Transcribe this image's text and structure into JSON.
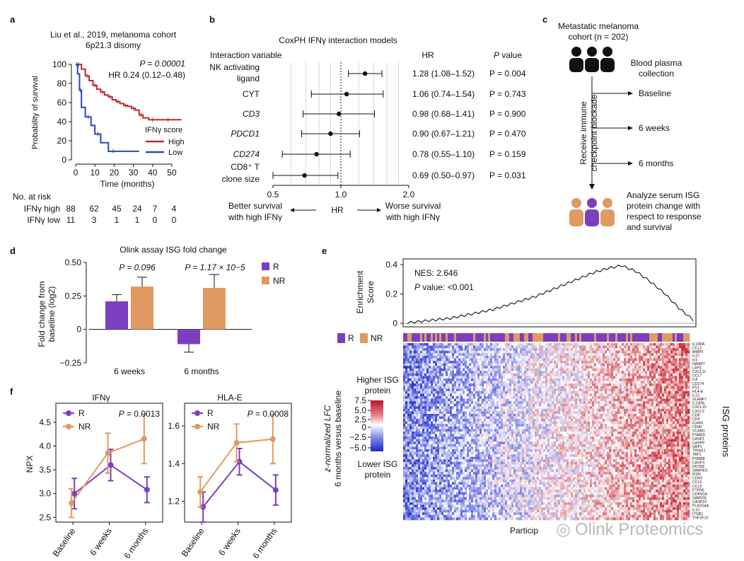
{
  "panels": {
    "a": {
      "label": "a",
      "title_line1": "Liu et al., 2019, melanoma cohort",
      "title_line2": "6p21.3 disomy",
      "pvalue": "P = 0.00001",
      "hr": "HR 0.24 (0.12–0.48)",
      "legend_title": "IFNγ score",
      "legend_high": "High",
      "legend_low": "Low",
      "risk_title": "No. at risk",
      "risk_rows": [
        {
          "label": "IFNγ high",
          "values": [
            "88",
            "62",
            "45",
            "24",
            "7",
            "4"
          ]
        },
        {
          "label": "IFNγ low",
          "values": [
            "11",
            "3",
            "1",
            "1",
            "0",
            "0"
          ]
        }
      ]
    },
    "b": {
      "label": "b",
      "title": "CoxPH IFNγ interaction models",
      "col_variable": "Interaction variable",
      "col_hr": "HR",
      "col_p": "P value",
      "xlabel": "HR",
      "better_label_1": "Better survival",
      "better_label_2": "with high IFNγ",
      "worse_label_1": "Worse survival",
      "worse_label_2": "with high IFNγ"
    },
    "c": {
      "label": "c",
      "cohort_1": "Metastatic melanoma",
      "cohort_2": "cohort (n = 202)",
      "plasma_1": "Blood plasma",
      "plasma_2": "collection",
      "receive_1": "Receive immune",
      "receive_2": "checkpoint blockade",
      "timepoints": [
        "Baseline",
        "6 weeks",
        "6 months"
      ],
      "analyze": [
        "Analyze serum ISG",
        "protein change with",
        "respect to response",
        "and survival"
      ]
    },
    "d": {
      "label": "d",
      "title": "Olink assay ISG fold change",
      "ylabel_1": "Fold change from",
      "ylabel_2": "baseline (log2)",
      "p1": "P = 0.096",
      "p2": "P = 1.17 × 10−5",
      "legend_r": "R",
      "legend_nr": "NR"
    },
    "e": {
      "label": "e",
      "ylabel_1": "Enrichment",
      "ylabel_2": "Score",
      "nes": "NES: 2.646",
      "pval": "P value: <0.001",
      "legend_r": "R",
      "legend_nr": "NR",
      "colorbar_top_1": "Higher ISG",
      "colorbar_top_2": "protein",
      "colorbar_bottom_1": "Lower ISG",
      "colorbar_bottom_2": "protein",
      "side_label_1": "z-normalized LFC",
      "side_label_2": "6 months versus baseline",
      "right_label": "ISG proteins",
      "xlabel": "Particip",
      "colorbar_ticks": [
        "7.5",
        "5.0",
        "2.5",
        "0",
        "−2.5",
        "−5.0"
      ],
      "genes": [
        "IL10RA",
        "CCL2",
        "MMP9",
        "IL27",
        "IL6",
        "NAMPT",
        "LAP3",
        "CXCL11",
        "CCL7",
        "IL8",
        "CD274",
        "PD1",
        "HLA-E",
        "IL12",
        "SLAMF7",
        "IL15RA",
        "CXCL10",
        "CXCL9",
        "CD8",
        "CD4",
        "ICAM1",
        "CD40",
        "VCAM1",
        "PSMB9",
        "CASP1",
        "CASP8",
        "GBP1",
        "TRIM21",
        "TAP1",
        "PSMB8",
        "CASP3",
        "DDX58",
        "SAMHD1",
        "IFI30",
        "CDH3",
        "CCL5",
        "CCL3",
        "PTPN6",
        "CDKN1A",
        "SAMD9L",
        "CASP10",
        "PLA2G4A",
        "IL15",
        "ITGB1",
        "TNFSF10"
      ]
    },
    "f": {
      "label": "f",
      "charts_titles": [
        "IFNγ",
        "HLA-E"
      ]
    },
    "watermark": "Olink Proteomics"
  },
  "chart_data": [
    {
      "id": "km",
      "type": "line",
      "title": "Liu et al., 2019, melanoma cohort 6p21.3 disomy",
      "xlabel": "Time (months)",
      "ylabel": "Probability of survival",
      "xlim": [
        0,
        57
      ],
      "ylim": [
        0,
        100
      ],
      "xticks": [
        0,
        10,
        20,
        30,
        40,
        50
      ],
      "yticks": [
        0,
        20,
        40,
        60,
        80,
        100
      ],
      "series": [
        {
          "name": "High",
          "color": "#c0282e",
          "x": [
            0,
            3,
            5,
            7,
            9,
            11,
            13,
            15,
            17,
            19,
            21,
            23,
            25,
            27,
            29,
            31,
            33,
            35,
            38,
            42,
            46,
            50,
            55
          ],
          "y": [
            100,
            95,
            88,
            83,
            78,
            74,
            71,
            68,
            66,
            63,
            61,
            59,
            57,
            56,
            54,
            52,
            47,
            44,
            42,
            42,
            42,
            42,
            42
          ]
        },
        {
          "name": "Low",
          "color": "#2e46b8",
          "x": [
            0,
            1,
            2,
            3,
            5,
            8,
            10,
            13,
            17,
            22,
            33
          ],
          "y": [
            100,
            90,
            73,
            55,
            45,
            36,
            27,
            18,
            9,
            9,
            9
          ]
        }
      ]
    },
    {
      "id": "forest",
      "type": "scatter",
      "title": "CoxPH IFNγ interaction models",
      "xlabel": "HR",
      "xlim": [
        0.5,
        2.0
      ],
      "xticks": [
        0.5,
        1.0,
        2.0
      ],
      "xtick_labels": [
        "0.5",
        "1.0",
        "2.0"
      ],
      "rows": [
        {
          "label": "NK activating ligand",
          "italic": false,
          "hr": 1.28,
          "lo": 1.08,
          "hi": 1.52,
          "ci_text": "1.28 (1.08–1.52)",
          "p_text": "P = 0.004"
        },
        {
          "label": "CYT",
          "italic": false,
          "hr": 1.06,
          "lo": 0.74,
          "hi": 1.54,
          "ci_text": "1.06 (0.74–1.54)",
          "p_text": "P = 0.743"
        },
        {
          "label": "CD3",
          "italic": true,
          "hr": 0.98,
          "lo": 0.68,
          "hi": 1.41,
          "ci_text": "0.98 (0.68–1.41)",
          "p_text": "P = 0.900"
        },
        {
          "label": "PDCD1",
          "italic": true,
          "hr": 0.9,
          "lo": 0.67,
          "hi": 1.21,
          "ci_text": "0.90 (0.67–1.21)",
          "p_text": "P = 0.470"
        },
        {
          "label": "CD274",
          "italic": true,
          "hr": 0.78,
          "lo": 0.55,
          "hi": 1.1,
          "ci_text": "0.78 (0.55–1.10)",
          "p_text": "P = 0.159"
        },
        {
          "label": "CD8+ T clone size",
          "italic": false,
          "hr": 0.69,
          "lo": 0.5,
          "hi": 0.97,
          "ci_text": "0.69 (0.50–0.97)",
          "p_text": "P = 0.031"
        }
      ]
    },
    {
      "id": "bars",
      "type": "bar",
      "title": "Olink assay ISG fold change",
      "categories": [
        "6 weeks",
        "6 months"
      ],
      "ylim": [
        -0.25,
        0.5
      ],
      "yticks": [
        -0.25,
        0,
        0.25,
        0.5
      ],
      "ytick_labels": [
        "−0.25",
        "0",
        "0.25",
        "0.50"
      ],
      "series": [
        {
          "name": "R",
          "color": "#7b3fbf",
          "values": [
            0.21,
            -0.11
          ],
          "err": [
            0.05,
            0.06
          ]
        },
        {
          "name": "NR",
          "color": "#e09a62",
          "values": [
            0.32,
            0.31
          ],
          "err": [
            0.07,
            0.1
          ]
        }
      ]
    },
    {
      "id": "enrichment",
      "type": "line",
      "ylim": [
        0,
        0.4
      ],
      "yticks": [
        0,
        0.2,
        0.4
      ],
      "ytick_labels": [
        "0",
        "0.2",
        "0.4"
      ],
      "x": [
        0,
        5,
        10,
        15,
        20,
        25,
        30,
        35,
        40,
        45,
        50,
        55,
        60,
        65,
        70,
        75,
        80,
        85,
        90,
        95,
        100
      ],
      "y": [
        0.0,
        0.01,
        0.02,
        0.03,
        0.05,
        0.07,
        0.09,
        0.12,
        0.15,
        0.18,
        0.22,
        0.26,
        0.3,
        0.34,
        0.37,
        0.39,
        0.35,
        0.28,
        0.2,
        0.1,
        0.02
      ]
    },
    {
      "id": "npx_ifng",
      "type": "line",
      "title": "IFNγ",
      "ylabel": "NPX",
      "pvalue": "P = 0.0013",
      "categories": [
        "Baseline",
        "6 weeks",
        "6 months"
      ],
      "ylim": [
        2.4,
        4.9
      ],
      "yticks": [
        2.5,
        3.0,
        3.5,
        4.0,
        4.5
      ],
      "ytick_labels": [
        "2.5",
        "3.0",
        "3.5",
        "4.0",
        "4.5"
      ],
      "series": [
        {
          "name": "R",
          "color": "#7b3fbf",
          "values": [
            3.0,
            3.6,
            3.08
          ],
          "err": [
            0.32,
            0.33,
            0.27
          ]
        },
        {
          "name": "NR",
          "color": "#e09a62",
          "values": [
            2.8,
            3.85,
            4.15
          ],
          "err": [
            0.3,
            0.42,
            0.52
          ]
        }
      ]
    },
    {
      "id": "npx_hlae",
      "type": "line",
      "title": "HLA-E",
      "pvalue": "P = 0.0008",
      "categories": [
        "Baseline",
        "6 weeks",
        "6 months"
      ],
      "ylim": [
        1.09,
        1.72
      ],
      "yticks": [
        1.2,
        1.4,
        1.6
      ],
      "ytick_labels": [
        "1.2",
        "1.4",
        "1.6"
      ],
      "series": [
        {
          "name": "R",
          "color": "#7b3fbf",
          "values": [
            1.17,
            1.41,
            1.26
          ],
          "err": [
            0.08,
            0.07,
            0.08
          ]
        },
        {
          "name": "NR",
          "color": "#e09a62",
          "values": [
            1.25,
            1.51,
            1.53
          ],
          "err": [
            0.08,
            0.1,
            0.13
          ]
        }
      ]
    }
  ]
}
